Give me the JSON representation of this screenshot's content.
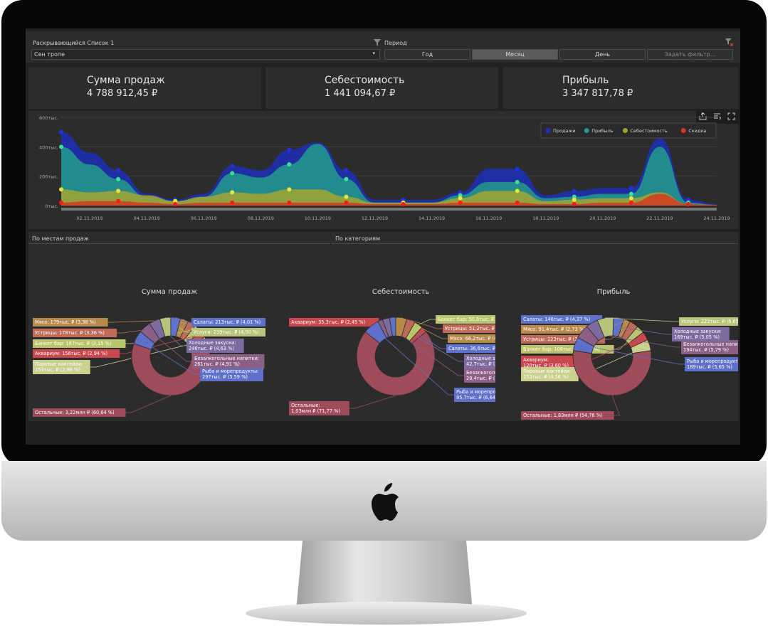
{
  "filters": {
    "dropdown_label": "Раскрывающийся Список 1",
    "dropdown_value": "Сен тропе",
    "period_label": "Период",
    "period_options": [
      "Год",
      "Месяц",
      "День"
    ],
    "period_selected": "Месяц",
    "custom_filter": "Задать фильтр..."
  },
  "kpis": [
    {
      "title": "Сумма продаж",
      "value": "4 788 912,45 ₽"
    },
    {
      "title": "Себестоимость",
      "value": "1 441 094,67 ₽"
    },
    {
      "title": "Прибыль",
      "value": "3 347 817,78 ₽"
    }
  ],
  "chart_data": [
    {
      "type": "area",
      "x": [
        "01.11.2019",
        "02.11.2019",
        "03.11.2019",
        "04.11.2019",
        "05.11.2019",
        "06.11.2019",
        "07.11.2019",
        "08.11.2019",
        "09.11.2019",
        "10.11.2019",
        "11.11.2019",
        "12.11.2019",
        "13.11.2019",
        "14.11.2019",
        "15.11.2019",
        "16.11.2019",
        "17.11.2019",
        "18.11.2019",
        "19.11.2019",
        "20.11.2019",
        "21.11.2019",
        "22.11.2019",
        "23.11.2019",
        "24.11.2019"
      ],
      "x_tick_labels": [
        "02.11.2019",
        "04.11.2019",
        "06.11.2019",
        "08.11.2019",
        "10.11.2019",
        "12.11.2019",
        "14.11.2019",
        "16.11.2019",
        "18.11.2019",
        "20.11.2019",
        "22.11.2019",
        "24.11.2019"
      ],
      "y_tick_labels": [
        "0тыс.",
        "200тыс.",
        "400тыс.",
        "600тыс."
      ],
      "ylim": [
        0,
        600000
      ],
      "legend_position": "top-right",
      "grid": true,
      "series": [
        {
          "name": "Продажи",
          "color": "#1f2fb8",
          "values": [
            500000,
            360000,
            240000,
            80000,
            40000,
            80000,
            270000,
            240000,
            380000,
            430000,
            240000,
            40000,
            40000,
            40000,
            90000,
            250000,
            250000,
            70000,
            100000,
            120000,
            120000,
            460000,
            40000,
            10000
          ]
        },
        {
          "name": "Прибыль",
          "color": "#239b8b",
          "values": [
            400000,
            280000,
            180000,
            60000,
            30000,
            60000,
            220000,
            190000,
            280000,
            420000,
            180000,
            20000,
            20000,
            20000,
            70000,
            160000,
            160000,
            50000,
            60000,
            80000,
            80000,
            400000,
            20000,
            5000
          ]
        },
        {
          "name": "Себестоимость",
          "color": "#a4a431",
          "values": [
            110000,
            90000,
            100000,
            70000,
            30000,
            60000,
            90000,
            80000,
            110000,
            110000,
            60000,
            20000,
            20000,
            20000,
            50000,
            100000,
            100000,
            30000,
            40000,
            50000,
            50000,
            90000,
            10000,
            5000
          ]
        },
        {
          "name": "Скидка",
          "color": "#d63b1e",
          "values": [
            20000,
            30000,
            30000,
            20000,
            10000,
            20000,
            20000,
            20000,
            20000,
            20000,
            20000,
            10000,
            10000,
            10000,
            20000,
            20000,
            20000,
            10000,
            10000,
            20000,
            20000,
            80000,
            10000,
            5000
          ]
        }
      ]
    },
    {
      "type": "pie",
      "title": "Сумма продаж",
      "slices": [
        {
          "label": "Мясо: 179тыс. ₽ (3,38 %)",
          "value": 3.38,
          "color": "#b7894a"
        },
        {
          "label": "Устрицы: 178тыс. ₽ (3,36 %)",
          "value": 3.36,
          "color": "#c06a5a"
        },
        {
          "label": "Банкет бар: 167тыс. ₽ (3,15 %)",
          "value": 3.15,
          "color": "#b9c46b"
        },
        {
          "label": "Аквариум: 156тыс. ₽ (2,94 %)",
          "value": 2.94,
          "color": "#c9484e"
        },
        {
          "label": "Паровые коктейли: 153тыс. ₽ (2,88 %)",
          "value": 2.88,
          "color": "#cbd08e"
        },
        {
          "label": "Остальные: 3,22млн ₽ (60,64 %)",
          "value": 60.64,
          "color": "#9e4c5a"
        },
        {
          "label": "Рыба и морепродукты: 297тыс. ₽ (5,59 %)",
          "value": 5.59,
          "color": "#5e70c9"
        },
        {
          "label": "Безалкогольные напитки: 261тыс. ₽ (4,91 %)",
          "value": 4.91,
          "color": "#8b5f86"
        },
        {
          "label": "Холодные закуски: 246тыс. ₽ (4,63 %)",
          "value": 4.63,
          "color": "#7d6a9e"
        },
        {
          "label": "Услуги: 239тыс. ₽ (4,50 %)",
          "value": 4.5,
          "color": "#b7c47a"
        },
        {
          "label": "Салаты: 213тыс. ₽ (4,01 %)",
          "value": 4.01,
          "color": "#5e72c9"
        }
      ]
    },
    {
      "type": "pie",
      "title": "Себестоимость",
      "slices": [
        {
          "label": "Аквариум: 35,3тыс. ₽ (2,45 %)",
          "value": 2.45,
          "color": "#c9484e"
        },
        {
          "label": "Остальные: 1,03млн ₽ (71,77 %)",
          "value": 71.77,
          "color": "#9e4c5a"
        },
        {
          "label": "Рыба и морепродукты: 95,7тыс. ₽ (6,64 %)",
          "value": 6.64,
          "color": "#5e70c9"
        },
        {
          "label": "Безалкогольные напитки: 28,4тыс. ₽ (1,97 %)",
          "value": 1.97,
          "color": "#8b5f86"
        },
        {
          "label": "Холодные закуски: 42,7тыс. ₽ (2,97 %)",
          "value": 2.97,
          "color": "#7d6a9e"
        },
        {
          "label": "Салаты: 36,6тыс. ₽ (2,54 %)",
          "value": 2.54,
          "color": "#5e72c9"
        },
        {
          "label": "Мясо: 66,2тыс. ₽ (4,60 %)",
          "value": 4.6,
          "color": "#b7894a"
        },
        {
          "label": "Устрицы: 51,2тыс. ₽ (3,55 %)",
          "value": 3.55,
          "color": "#c06a5a"
        },
        {
          "label": "Банкет бар: 50,6тыс. ₽ (3,51 %)",
          "value": 3.51,
          "color": "#b9c46b"
        }
      ]
    },
    {
      "type": "pie",
      "title": "Прибыль",
      "slices": [
        {
          "label": "Салаты: 146тыс. ₽ (4,37 %)",
          "value": 4.37,
          "color": "#5e72c9"
        },
        {
          "label": "Мясо: 91,4тыс. ₽ (2,73 %)",
          "value": 2.73,
          "color": "#b7894a"
        },
        {
          "label": "Устрицы: 123тыс. ₽ (3,66 %)",
          "value": 3.66,
          "color": "#c06a5a"
        },
        {
          "label": "Банкет бар: 106тыс. ₽ (3,18 %)",
          "value": 3.18,
          "color": "#b9c46b"
        },
        {
          "label": "Аквариум: 120тыс. ₽ (3,60 %)",
          "value": 3.6,
          "color": "#c9484e"
        },
        {
          "label": "Паровые коктейли: 153тыс. ₽ (4,56 %)",
          "value": 4.56,
          "color": "#cbd08e"
        },
        {
          "label": "Остальные: 1,83млн ₽ (54,76 %)",
          "value": 54.76,
          "color": "#9e4c5a"
        },
        {
          "label": "Рыба и морепродукты: 189тыс. ₽ (5,65 %)",
          "value": 5.65,
          "color": "#5e70c9"
        },
        {
          "label": "Безалкогольные напитки: 194тыс. ₽ (5,79 %)",
          "value": 5.79,
          "color": "#8b5f86"
        },
        {
          "label": "Холодные закуски: 169тыс. ₽ (5,05 %)",
          "value": 5.05,
          "color": "#7d6a9e"
        },
        {
          "label": "Услуги: 222тыс. ₽ (6,65 %)",
          "value": 6.65,
          "color": "#b7c47a"
        }
      ]
    }
  ],
  "tabs": {
    "by_place": "По местам продаж",
    "by_category": "По категориям"
  },
  "icons": {
    "export": "export-icon",
    "filter_clear": "filter-clear-icon",
    "toggle": "toggle-icon",
    "fullscreen": "fullscreen-icon"
  }
}
